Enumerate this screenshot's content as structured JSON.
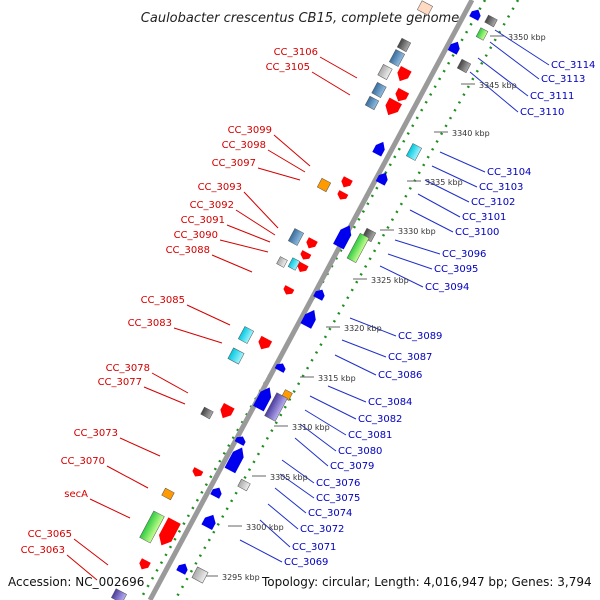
{
  "title": "Caulobacter crescentus CB15, complete genome",
  "footer": {
    "accession": "Accession: NC_002696",
    "stats": "Topology: circular; Length: 4,016,947 bp; Genes: 3,794"
  },
  "colors": {
    "backbone": "#888888",
    "forward_label": "#d40000",
    "reverse_label": "#0000c0",
    "forward_gene": "#ff0000",
    "reverse_gene": "#0000ee",
    "dots": "#228b22"
  },
  "tick_labels": [
    "3350 kbp",
    "3345 kbp",
    "3340 kbp",
    "3335 kbp",
    "3330 kbp",
    "3325 kbp",
    "3320 kbp",
    "3315 kbp",
    "3310 kbp",
    "3305 kbp",
    "3300 kbp",
    "3295 kbp"
  ],
  "forward_labels": [
    "CC_3106",
    "CC_3105",
    "CC_3099",
    "CC_3098",
    "CC_3097",
    "CC_3093",
    "CC_3092",
    "CC_3091",
    "CC_3090",
    "CC_3088",
    "CC_3085",
    "CC_3083",
    "CC_3078",
    "CC_3077",
    "CC_3073",
    "CC_3070",
    "secA",
    "CC_3065",
    "CC_3063"
  ],
  "reverse_labels": [
    "CC_3114",
    "CC_3113",
    "CC_3111",
    "CC_3110",
    "CC_3104",
    "CC_3103",
    "CC_3102",
    "CC_3101",
    "CC_3100",
    "CC_3096",
    "CC_3095",
    "CC_3094",
    "CC_3089",
    "CC_3087",
    "CC_3086",
    "CC_3084",
    "CC_3082",
    "CC_3081",
    "CC_3080",
    "CC_3079",
    "CC_3076",
    "CC_3075",
    "CC_3074",
    "CC_3072",
    "CC_3071",
    "CC_3069"
  ]
}
